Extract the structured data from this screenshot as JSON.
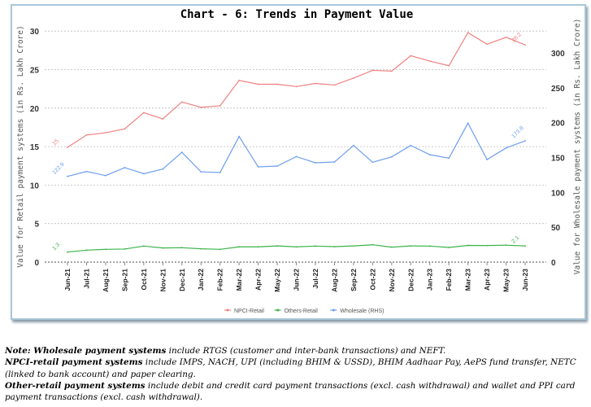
{
  "chart_data": {
    "type": "line",
    "title": "Chart - 6: Trends in Payment Value",
    "ylabel": "Value for Retail payment systems (in Rs. Lakh Crore)",
    "y2label": "Value for Wholesale payment systems (in Rs. Lakh Crore)",
    "ylim": [
      0,
      30
    ],
    "y2lim": [
      0,
      330
    ],
    "yticks": [
      "0",
      "5",
      "10",
      "15",
      "20",
      "25",
      "30"
    ],
    "y2ticks": [
      "0",
      "50",
      "100",
      "150",
      "200",
      "250",
      "300"
    ],
    "grid": true,
    "legend_position": "bottom",
    "categories": [
      "Jun-21",
      "Jul-21",
      "Aug-21",
      "Sep-21",
      "Oct-21",
      "Nov-21",
      "Dec-21",
      "Jan-22",
      "Feb-22",
      "Mar-22",
      "Apr-22",
      "May-22",
      "Jun-22",
      "Jul-22",
      "Aug-22",
      "Sep-22",
      "Oct-22",
      "Nov-22",
      "Dec-22",
      "Jan-23",
      "Feb-23",
      "Mar-23",
      "Apr-23",
      "May-23",
      "Jun-23"
    ],
    "series": [
      {
        "name": "NPCI-Retail",
        "axis": "left",
        "color": "#f08080",
        "values": [
          14.9,
          16.5,
          16.8,
          17.3,
          19.4,
          18.6,
          20.8,
          20.1,
          20.3,
          23.6,
          23.1,
          23.1,
          22.8,
          23.2,
          23.0,
          23.9,
          24.9,
          24.8,
          26.8,
          26.1,
          25.5,
          29.8,
          28.3,
          29.2,
          28.2
        ],
        "start_label": "15",
        "end_label": "28.2"
      },
      {
        "name": "Others-Retail",
        "axis": "left",
        "color": "#3cb44b",
        "values": [
          1.3,
          1.55,
          1.66,
          1.7,
          2.08,
          1.84,
          1.87,
          1.73,
          1.66,
          1.98,
          1.98,
          2.1,
          1.98,
          2.08,
          2.01,
          2.1,
          2.25,
          1.94,
          2.1,
          2.08,
          1.9,
          2.17,
          2.15,
          2.2,
          2.1
        ],
        "start_label": "1.3",
        "end_label": "2.1"
      },
      {
        "name": "Wholesale (RHS)",
        "axis": "right",
        "color": "#6e9ef0",
        "values": [
          122.9,
          129.9,
          124.0,
          135.4,
          126.8,
          133.4,
          157.5,
          129.5,
          128.4,
          180.0,
          136.5,
          137.7,
          151.3,
          142.4,
          143.5,
          167.2,
          143.2,
          150.9,
          167.2,
          154.0,
          149.0,
          199.2,
          147.0,
          163.7,
          173.8
        ],
        "start_label": "122.9",
        "end_label": "173.8"
      }
    ]
  },
  "notes": {
    "note_prefix": "Note: ",
    "n1_bold": "Wholesale payment systems",
    "n1_text": " include RTGS (customer and inter-bank transactions) and NEFT.",
    "n2_bold": "NPCI-retail payment systems",
    "n2_text": " include IMPS, NACH, UPI (including BHIM & USSD), BHIM Aadhaar Pay, AePS fund transfer, NETC (linked to bank account) and paper clearing.",
    "n3_bold": "Other-retail payment systems",
    "n3_text": " include debit and credit card payment transactions (excl. cash withdrawal) and wallet and PPI card payment transactions (excl. cash withdrawal)."
  }
}
